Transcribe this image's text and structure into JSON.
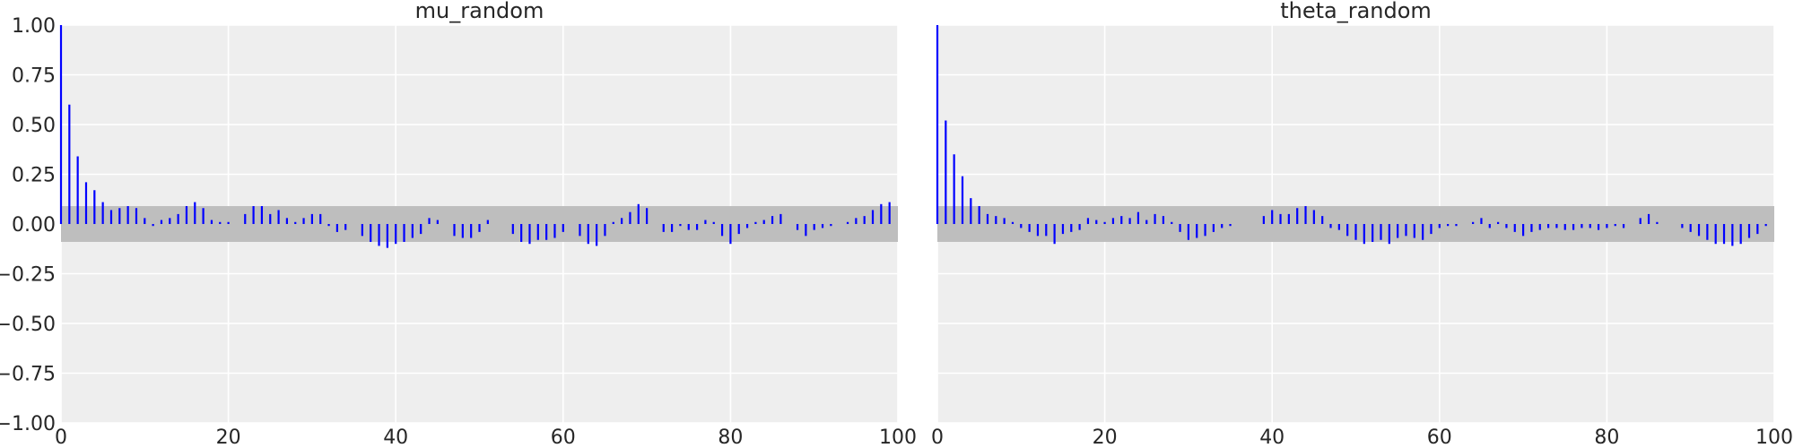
{
  "chart_data": [
    {
      "type": "bar",
      "title": "mu_random",
      "xlabel": "",
      "ylabel": "",
      "xlim": [
        0,
        100
      ],
      "ylim": [
        -1.0,
        1.0
      ],
      "xticks": [
        0,
        20,
        40,
        60,
        80,
        100
      ],
      "yticks": [
        1.0,
        0.75,
        0.5,
        0.25,
        0.0,
        -0.25,
        -0.5,
        -0.75,
        -1.0
      ],
      "ytick_labels": [
        "1.00",
        "0.75",
        "0.50",
        "0.25",
        "0.00",
        "−0.25",
        "−0.50",
        "−0.75",
        "−1.00"
      ],
      "grid": true,
      "confidence_band": [
        -0.09,
        0.09
      ],
      "lags": [
        0,
        1,
        2,
        3,
        4,
        5,
        6,
        7,
        8,
        9,
        10,
        11,
        12,
        13,
        14,
        15,
        16,
        17,
        18,
        19,
        20,
        21,
        22,
        23,
        24,
        25,
        26,
        27,
        28,
        29,
        30,
        31,
        32,
        33,
        34,
        35,
        36,
        37,
        38,
        39,
        40,
        41,
        42,
        43,
        44,
        45,
        46,
        47,
        48,
        49,
        50,
        51,
        52,
        53,
        54,
        55,
        56,
        57,
        58,
        59,
        60,
        61,
        62,
        63,
        64,
        65,
        66,
        67,
        68,
        69,
        70,
        71,
        72,
        73,
        74,
        75,
        76,
        77,
        78,
        79,
        80,
        81,
        82,
        83,
        84,
        85,
        86,
        87,
        88,
        89,
        90,
        91,
        92,
        93,
        94,
        95,
        96,
        97,
        98,
        99
      ],
      "values": [
        1.0,
        0.6,
        0.34,
        0.21,
        0.17,
        0.11,
        0.07,
        0.08,
        0.09,
        0.08,
        0.03,
        -0.01,
        0.02,
        0.03,
        0.05,
        0.09,
        0.11,
        0.08,
        0.02,
        0.01,
        0.01,
        0.0,
        0.05,
        0.09,
        0.09,
        0.05,
        0.07,
        0.03,
        0.01,
        0.03,
        0.05,
        0.05,
        -0.01,
        -0.04,
        -0.03,
        0.0,
        -0.06,
        -0.09,
        -0.11,
        -0.12,
        -0.1,
        -0.09,
        -0.07,
        -0.05,
        0.03,
        0.02,
        0.0,
        -0.06,
        -0.07,
        -0.07,
        -0.04,
        0.02,
        0.0,
        0.0,
        -0.05,
        -0.09,
        -0.1,
        -0.08,
        -0.08,
        -0.07,
        -0.04,
        0.0,
        -0.06,
        -0.1,
        -0.11,
        -0.06,
        0.01,
        0.03,
        0.06,
        0.1,
        0.08,
        0.0,
        -0.04,
        -0.04,
        -0.01,
        -0.03,
        -0.03,
        0.02,
        0.01,
        -0.06,
        -0.1,
        -0.05,
        -0.02,
        0.01,
        0.02,
        0.04,
        0.05,
        0.0,
        -0.03,
        -0.06,
        -0.03,
        -0.02,
        -0.01,
        0.0,
        0.01,
        0.03,
        0.04,
        0.07,
        0.1,
        0.11
      ]
    },
    {
      "type": "bar",
      "title": "theta_random",
      "xlabel": "",
      "ylabel": "",
      "xlim": [
        0,
        100
      ],
      "ylim": [
        -1.0,
        1.0
      ],
      "xticks": [
        0,
        20,
        40,
        60,
        80,
        100
      ],
      "grid": true,
      "confidence_band": [
        -0.09,
        0.09
      ],
      "lags": [
        0,
        1,
        2,
        3,
        4,
        5,
        6,
        7,
        8,
        9,
        10,
        11,
        12,
        13,
        14,
        15,
        16,
        17,
        18,
        19,
        20,
        21,
        22,
        23,
        24,
        25,
        26,
        27,
        28,
        29,
        30,
        31,
        32,
        33,
        34,
        35,
        36,
        37,
        38,
        39,
        40,
        41,
        42,
        43,
        44,
        45,
        46,
        47,
        48,
        49,
        50,
        51,
        52,
        53,
        54,
        55,
        56,
        57,
        58,
        59,
        60,
        61,
        62,
        63,
        64,
        65,
        66,
        67,
        68,
        69,
        70,
        71,
        72,
        73,
        74,
        75,
        76,
        77,
        78,
        79,
        80,
        81,
        82,
        83,
        84,
        85,
        86,
        87,
        88,
        89,
        90,
        91,
        92,
        93,
        94,
        95,
        96,
        97,
        98,
        99
      ],
      "values": [
        1.0,
        0.52,
        0.35,
        0.24,
        0.13,
        0.09,
        0.05,
        0.04,
        0.03,
        0.01,
        -0.02,
        -0.04,
        -0.06,
        -0.06,
        -0.1,
        -0.05,
        -0.04,
        -0.03,
        0.03,
        0.02,
        0.01,
        0.03,
        0.04,
        0.03,
        0.06,
        0.02,
        0.05,
        0.04,
        0.01,
        -0.04,
        -0.08,
        -0.07,
        -0.06,
        -0.04,
        -0.02,
        -0.01,
        0.0,
        0.0,
        0.0,
        0.04,
        0.07,
        0.05,
        0.05,
        0.08,
        0.09,
        0.07,
        0.04,
        -0.02,
        -0.03,
        -0.06,
        -0.08,
        -0.1,
        -0.09,
        -0.08,
        -0.1,
        -0.07,
        -0.06,
        -0.07,
        -0.08,
        -0.05,
        -0.02,
        -0.01,
        -0.01,
        0.0,
        0.01,
        0.03,
        -0.02,
        0.01,
        -0.02,
        -0.04,
        -0.06,
        -0.04,
        -0.03,
        -0.02,
        -0.02,
        -0.03,
        -0.03,
        -0.02,
        -0.02,
        -0.03,
        -0.02,
        -0.01,
        -0.02,
        0.0,
        0.03,
        0.05,
        0.01,
        0.0,
        0.0,
        -0.02,
        -0.04,
        -0.06,
        -0.08,
        -0.1,
        -0.1,
        -0.11,
        -0.1,
        -0.07,
        -0.05,
        -0.01
      ]
    }
  ],
  "style": {
    "bar_color": "#0000ff",
    "band_color": "#bebebe",
    "plot_bg": "#eeeeee",
    "grid_color": "#ffffff",
    "text_color": "#262626"
  }
}
